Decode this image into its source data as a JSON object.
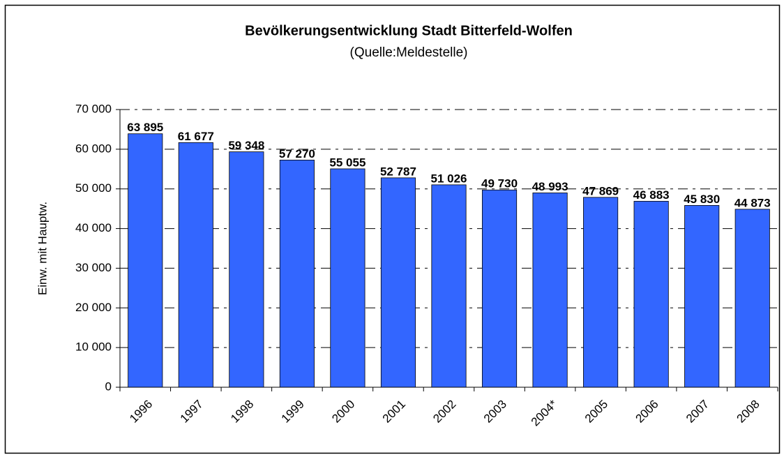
{
  "chart_data": {
    "type": "bar",
    "title": "Bevölkerungsentwicklung Stadt Bitterfeld-Wolfen",
    "subtitle": "(Quelle:Meldestelle)",
    "y_label": "Einw. mit Hauptw.",
    "categories": [
      "1996",
      "1997",
      "1998",
      "1999",
      "2000",
      "2001",
      "2002",
      "2003",
      "2004*",
      "2005",
      "2006",
      "2007",
      "2008"
    ],
    "values": [
      63895,
      61677,
      59348,
      57270,
      55055,
      52787,
      51026,
      49730,
      48993,
      47869,
      46883,
      45830,
      44873
    ],
    "value_labels": [
      "63 895",
      "61 677",
      "59 348",
      "57 270",
      "55 055",
      "52 787",
      "51 026",
      "49 730",
      "48 993",
      "47 869",
      "46 883",
      "45 830",
      "44 873"
    ],
    "color": "#3366ff",
    "ylim": [
      0,
      70000
    ],
    "yticks": [
      0,
      {
        "value": 10000,
        "label": "10 000"
      },
      {
        "value": 20000,
        "label": "20 000"
      },
      {
        "value": 30000,
        "label": "30 000"
      },
      {
        "value": 40000,
        "label": "40 000"
      },
      {
        "value": 50000,
        "label": "50 000"
      },
      {
        "value": 60000,
        "label": "60 000"
      },
      {
        "value": 70000,
        "label": "70 000"
      }
    ],
    "grid": true
  }
}
